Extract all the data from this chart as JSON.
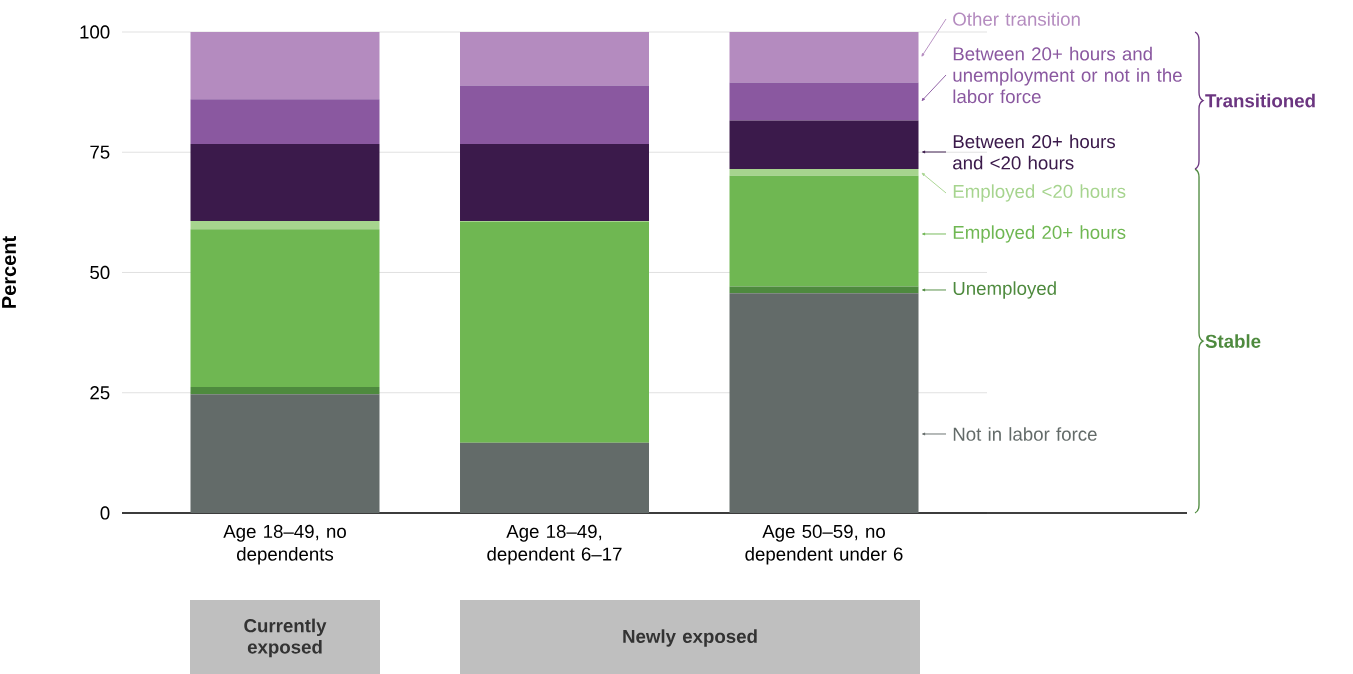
{
  "chart_data": {
    "type": "bar",
    "stacked": true,
    "ylabel": "Percent",
    "categories": [
      "Age 18–49, no dependents",
      "Age 18–49, dependent 6–17",
      "Age 50–59, no dependent under 6"
    ],
    "series": [
      {
        "name": "Not in labor force",
        "color": "#636b69",
        "values": [
          24.7,
          14.6,
          45.7
        ]
      },
      {
        "name": "Unemployed",
        "color": "#4e8a3e",
        "values": [
          1.5,
          0,
          1.4
        ]
      },
      {
        "name": "Employed 20+ hours",
        "color": "#6fb752",
        "values": [
          32.8,
          45.9,
          23.0
        ]
      },
      {
        "name": "Employed <20 hours",
        "color": "#a6d48e",
        "values": [
          1.7,
          0.2,
          1.4
        ]
      },
      {
        "name": "Between 20+ hours and <20 hours",
        "color": "#3b1a4b",
        "values": [
          16.0,
          16.0,
          10.1
        ]
      },
      {
        "name": "Between 20+ hours and unemployment or not in the labor force",
        "color": "#8a58a0",
        "values": [
          9.3,
          12.2,
          7.9
        ]
      },
      {
        "name": "Other transition",
        "color": "#b48bbf",
        "values": [
          14.0,
          11.1,
          10.5
        ]
      }
    ],
    "ylim": [
      0,
      100
    ],
    "yticks": [
      0,
      25,
      50,
      75,
      100
    ],
    "grid": "y",
    "legend": "right",
    "annotations": [
      "Transitioned",
      "Stable",
      "Currently exposed",
      "Newly exposed"
    ]
  }
}
